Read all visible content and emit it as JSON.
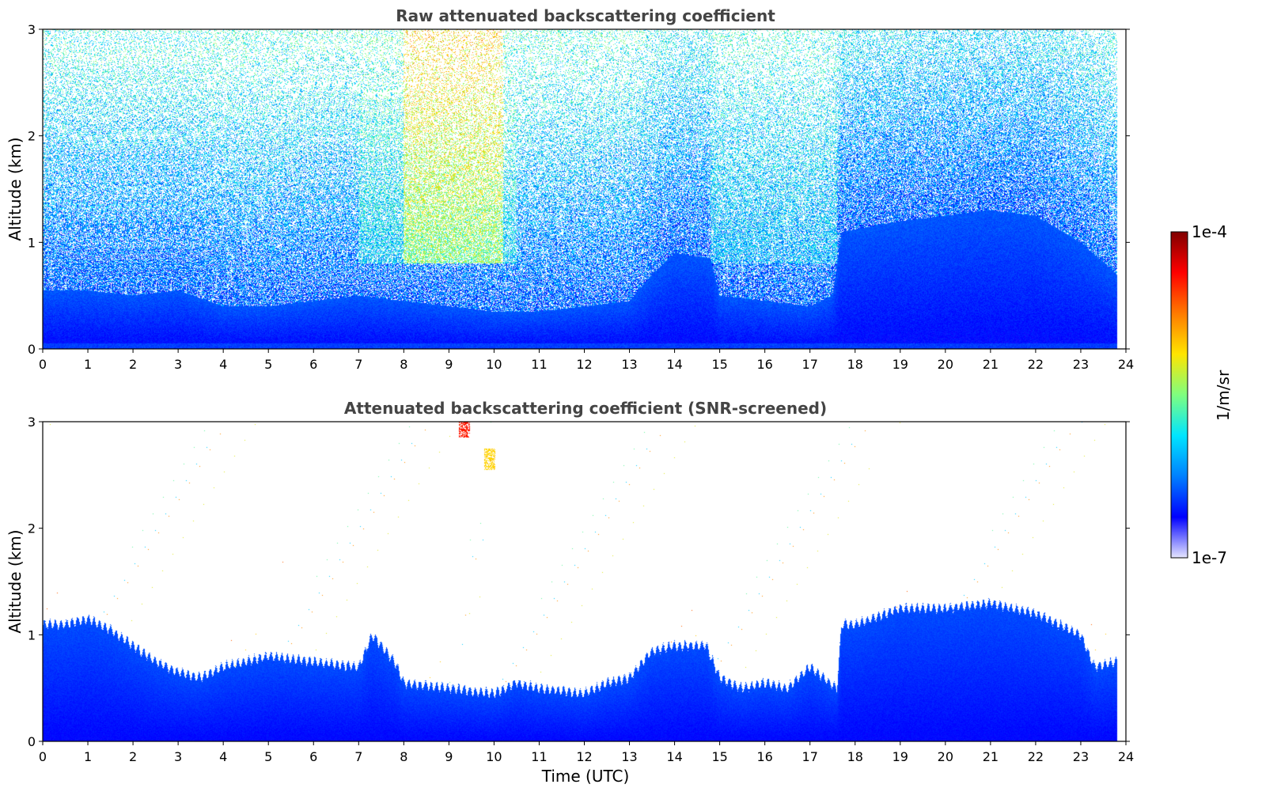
{
  "chart_data": [
    {
      "type": "heatmap",
      "title": "Raw attenuated backscattering coefficient",
      "xlabel": "",
      "ylabel": "Altitude (km)",
      "xlim": [
        0,
        24
      ],
      "ylim": [
        0,
        3
      ],
      "x_ticks": [
        "0",
        "1",
        "2",
        "3",
        "4",
        "5",
        "6",
        "7",
        "8",
        "9",
        "10",
        "11",
        "12",
        "13",
        "14",
        "15",
        "16",
        "17",
        "18",
        "19",
        "20",
        "21",
        "22",
        "23",
        "24"
      ],
      "y_ticks": [
        "0",
        "1",
        "2",
        "3"
      ],
      "grid": false,
      "boundary_layer_top_km": [
        [
          0,
          0.55
        ],
        [
          1,
          0.55
        ],
        [
          2,
          0.5
        ],
        [
          3,
          0.55
        ],
        [
          4,
          0.4
        ],
        [
          5,
          0.4
        ],
        [
          6,
          0.45
        ],
        [
          7,
          0.5
        ],
        [
          8,
          0.45
        ],
        [
          9,
          0.4
        ],
        [
          10,
          0.35
        ],
        [
          11,
          0.35
        ],
        [
          12,
          0.4
        ],
        [
          13,
          0.45
        ],
        [
          13.5,
          0.7
        ],
        [
          14,
          0.9
        ],
        [
          14.8,
          0.85
        ],
        [
          15,
          0.5
        ],
        [
          16,
          0.45
        ],
        [
          17,
          0.4
        ],
        [
          17.5,
          0.5
        ],
        [
          17.7,
          1.1
        ],
        [
          19,
          1.2
        ],
        [
          20,
          1.25
        ],
        [
          21,
          1.3
        ],
        [
          22,
          1.25
        ],
        [
          23,
          1.0
        ],
        [
          23.8,
          0.7
        ]
      ],
      "elevated_layer_segments": [
        {
          "x_start": 7.0,
          "x_end": 10.5,
          "strength": 0.55
        },
        {
          "x_start": 8.0,
          "x_end": 10.2,
          "strength": 0.8
        },
        {
          "x_start": 14.8,
          "x_end": 17.6,
          "strength": 0.5
        }
      ]
    },
    {
      "type": "heatmap",
      "title": "Attenuated backscattering coefficient (SNR-screened)",
      "xlabel": "Time (UTC)",
      "ylabel": "Altitude (km)",
      "xlim": [
        0,
        24
      ],
      "ylim": [
        0,
        3
      ],
      "x_ticks": [
        "0",
        "1",
        "2",
        "3",
        "4",
        "5",
        "6",
        "7",
        "8",
        "9",
        "10",
        "11",
        "12",
        "13",
        "14",
        "15",
        "16",
        "17",
        "18",
        "19",
        "20",
        "21",
        "22",
        "23",
        "24"
      ],
      "y_ticks": [
        "0",
        "1",
        "2",
        "3"
      ],
      "grid": false,
      "boundary_layer_top_km": [
        [
          0,
          1.1
        ],
        [
          0.5,
          1.1
        ],
        [
          1,
          1.15
        ],
        [
          1.5,
          1.05
        ],
        [
          2,
          0.9
        ],
        [
          2.5,
          0.75
        ],
        [
          3,
          0.65
        ],
        [
          3.5,
          0.6
        ],
        [
          4,
          0.7
        ],
        [
          5,
          0.8
        ],
        [
          6,
          0.75
        ],
        [
          7,
          0.7
        ],
        [
          7.3,
          1.0
        ],
        [
          7.8,
          0.75
        ],
        [
          8,
          0.55
        ],
        [
          9,
          0.5
        ],
        [
          10,
          0.45
        ],
        [
          10.5,
          0.55
        ],
        [
          11,
          0.5
        ],
        [
          12,
          0.45
        ],
        [
          12.5,
          0.55
        ],
        [
          13,
          0.6
        ],
        [
          13.5,
          0.85
        ],
        [
          14,
          0.9
        ],
        [
          14.7,
          0.9
        ],
        [
          15,
          0.6
        ],
        [
          15.5,
          0.5
        ],
        [
          16,
          0.55
        ],
        [
          16.5,
          0.5
        ],
        [
          17,
          0.7
        ],
        [
          17.6,
          0.5
        ],
        [
          17.7,
          1.1
        ],
        [
          18,
          1.1
        ],
        [
          19,
          1.25
        ],
        [
          20,
          1.25
        ],
        [
          21,
          1.3
        ],
        [
          22,
          1.2
        ],
        [
          23,
          1.0
        ],
        [
          23.3,
          0.7
        ],
        [
          23.8,
          0.75
        ]
      ],
      "cloud_patches_km": [
        {
          "x": 9.35,
          "y_low": 2.85,
          "y_high": 3.0,
          "strength": 0.85
        },
        {
          "x": 9.9,
          "y_low": 2.55,
          "y_high": 2.75,
          "strength": 0.65
        }
      ]
    }
  ],
  "colorbar": {
    "label": "1/m/sr",
    "tick_top": "1e-4",
    "tick_bottom": "1e-7",
    "scale": "log",
    "range": [
      "1e-7",
      "1e-4"
    ],
    "colors": [
      "#e6e6ff",
      "#0000ff",
      "#0080ff",
      "#00e5ff",
      "#7fff7f",
      "#ffe500",
      "#ff7a00",
      "#ff0000",
      "#800000"
    ]
  }
}
